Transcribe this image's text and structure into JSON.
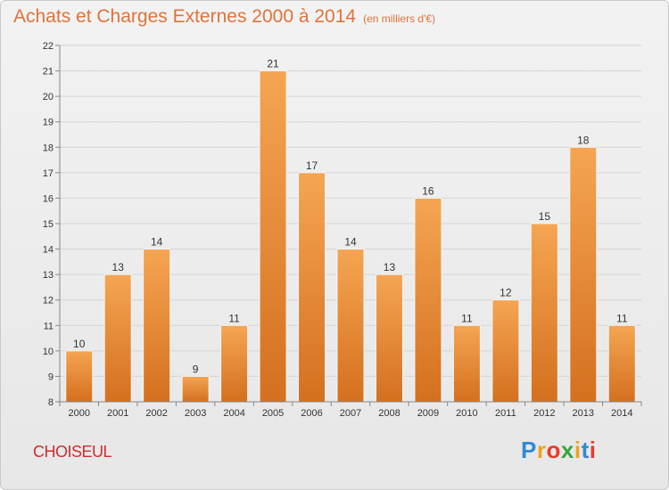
{
  "header": {
    "title": "Achats et Charges Externes 2000 à 2014",
    "subtitle": "(en milliers d'€)"
  },
  "footer": {
    "commune": "CHOISEUL",
    "logo_letters": [
      "P",
      "r",
      "o",
      "x",
      "i",
      "t",
      "i"
    ],
    "logo_colors": [
      "#2f8ad6",
      "#f0a21e",
      "#e63b2e",
      "#36a640",
      "#f0a21e",
      "#2f8ad6",
      "#e63b2e"
    ]
  },
  "chart_data": {
    "type": "bar",
    "title": "Achats et Charges Externes 2000 à 2014",
    "subtitle": "(en milliers d'€)",
    "categories": [
      "2000",
      "2001",
      "2002",
      "2003",
      "2004",
      "2005",
      "2006",
      "2007",
      "2008",
      "2009",
      "2010",
      "2011",
      "2012",
      "2013",
      "2014"
    ],
    "values": [
      10,
      13,
      14,
      9,
      11,
      21,
      17,
      14,
      13,
      16,
      11,
      12,
      15,
      18,
      11
    ],
    "data_labels": [
      "10",
      "13",
      "14",
      "9",
      "11",
      "21",
      "17",
      "14",
      "13",
      "16",
      "11",
      "12",
      "15",
      "18",
      "11"
    ],
    "ylim": [
      8,
      22
    ],
    "yticks": [
      8,
      9,
      10,
      11,
      12,
      13,
      14,
      15,
      16,
      17,
      18,
      19,
      20,
      21,
      22
    ],
    "grid": true,
    "bar_color_top": "#f5a552",
    "bar_color_bottom": "#d4701f"
  }
}
